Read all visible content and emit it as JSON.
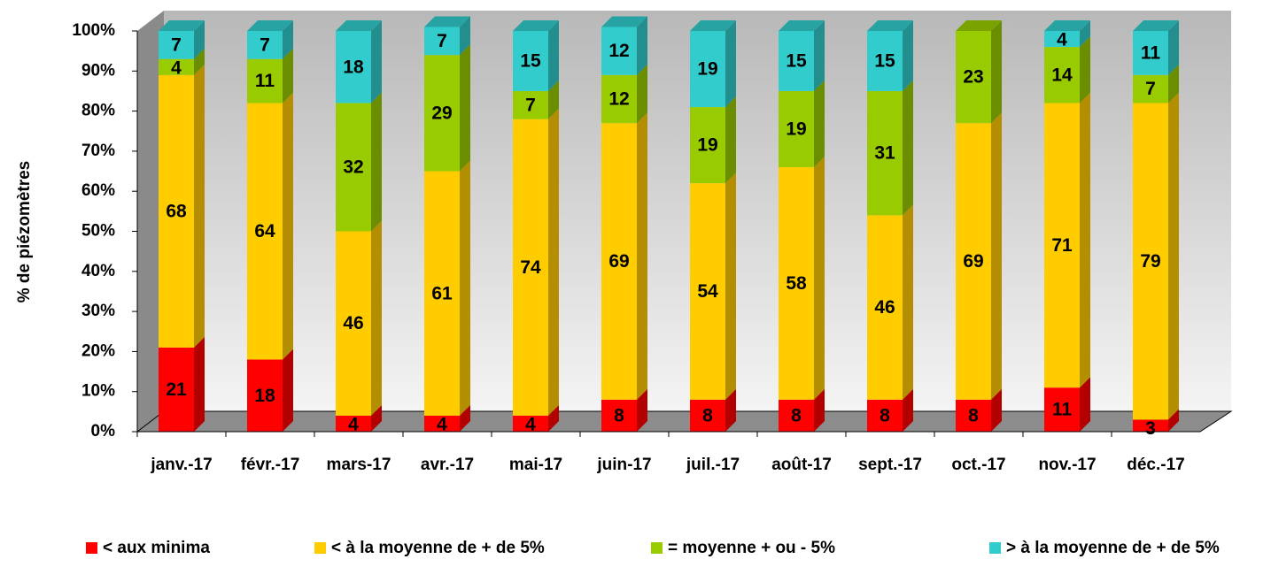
{
  "chart_data": {
    "type": "bar",
    "stacked": true,
    "y_label": "% de piézomètres",
    "categories": [
      "janv.-17",
      "févr.-17",
      "mars-17",
      "avr.-17",
      "mai-17",
      "juin-17",
      "juil.-17",
      "août-17",
      "sept.-17",
      "oct.-17",
      "nov.-17",
      "déc.-17"
    ],
    "series": [
      {
        "name": "< aux minima",
        "color": "#ff0000",
        "values": [
          21,
          18,
          4,
          4,
          4,
          8,
          8,
          8,
          8,
          8,
          11,
          3
        ]
      },
      {
        "name": "< à la moyenne de + de 5%",
        "color": "#ffcc00",
        "values": [
          68,
          64,
          46,
          61,
          74,
          69,
          54,
          58,
          46,
          69,
          71,
          79
        ]
      },
      {
        "name": "= moyenne + ou - 5%",
        "color": "#99cc00",
        "values": [
          4,
          11,
          32,
          29,
          7,
          12,
          19,
          19,
          31,
          23,
          14,
          7
        ]
      },
      {
        "name": "> à la moyenne de + de 5%",
        "color": "#33cccc",
        "values": [
          7,
          7,
          18,
          7,
          15,
          12,
          19,
          15,
          15,
          null,
          4,
          11
        ]
      }
    ],
    "ylim": [
      0,
      100
    ],
    "yticks": [
      {
        "value": 0,
        "label": "0%"
      },
      {
        "value": 10,
        "label": "10%"
      },
      {
        "value": 20,
        "label": "20%"
      },
      {
        "value": 30,
        "label": "30%"
      },
      {
        "value": 40,
        "label": "40%"
      },
      {
        "value": 50,
        "label": "50%"
      },
      {
        "value": 60,
        "label": "60%"
      },
      {
        "value": 70,
        "label": "70%"
      },
      {
        "value": 80,
        "label": "80%"
      },
      {
        "value": 90,
        "label": "90%"
      },
      {
        "value": 100,
        "label": "100%"
      }
    ],
    "legend": "bottom"
  }
}
